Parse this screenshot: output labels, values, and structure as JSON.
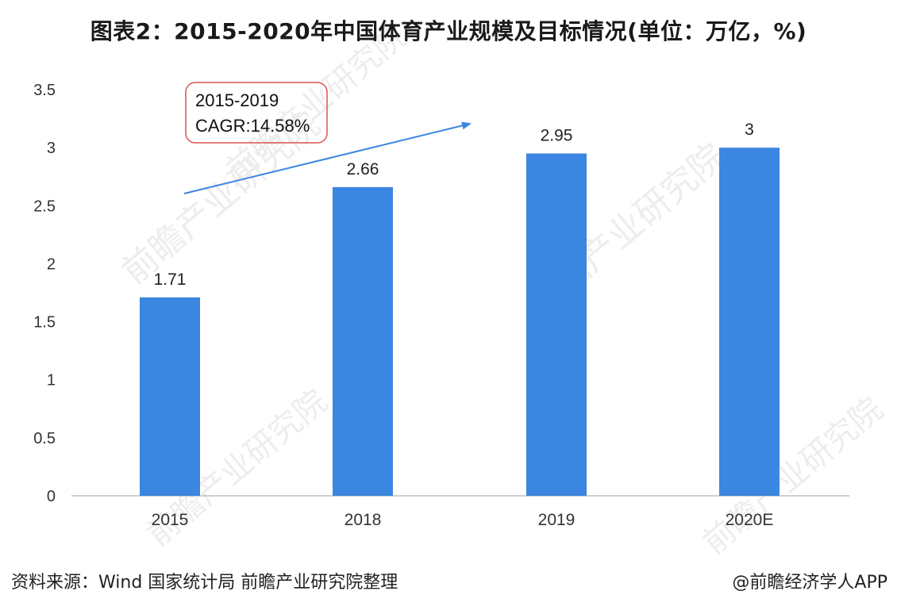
{
  "chart_data": {
    "type": "bar",
    "title": "图表2：2015-2020年中国体育产业规模及目标情况(单位：万亿，%)",
    "categories": [
      "2015",
      "2018",
      "2019",
      "2020E"
    ],
    "values": [
      1.71,
      2.66,
      2.95,
      3
    ],
    "value_labels": [
      "1.71",
      "2.66",
      "2.95",
      "3"
    ],
    "ylim": [
      0,
      3.5
    ],
    "yticks": [
      "0",
      "0.5",
      "1",
      "1.5",
      "2",
      "2.5",
      "3",
      "3.5"
    ],
    "xlabel": "",
    "ylabel": "",
    "grid": false,
    "bar_color": "#3b86e0",
    "annotation": {
      "line1": "2015-2019",
      "line2": "CAGR:14.58%",
      "border_color": "#d9534f",
      "arrow_color": "#3b86e0"
    }
  },
  "footer": {
    "source": "资料来源：Wind 国家统计局 前瞻产业研究院整理",
    "credit": "@前瞻经济学人APP"
  },
  "watermark": {
    "text": "前瞻产业研究院"
  }
}
